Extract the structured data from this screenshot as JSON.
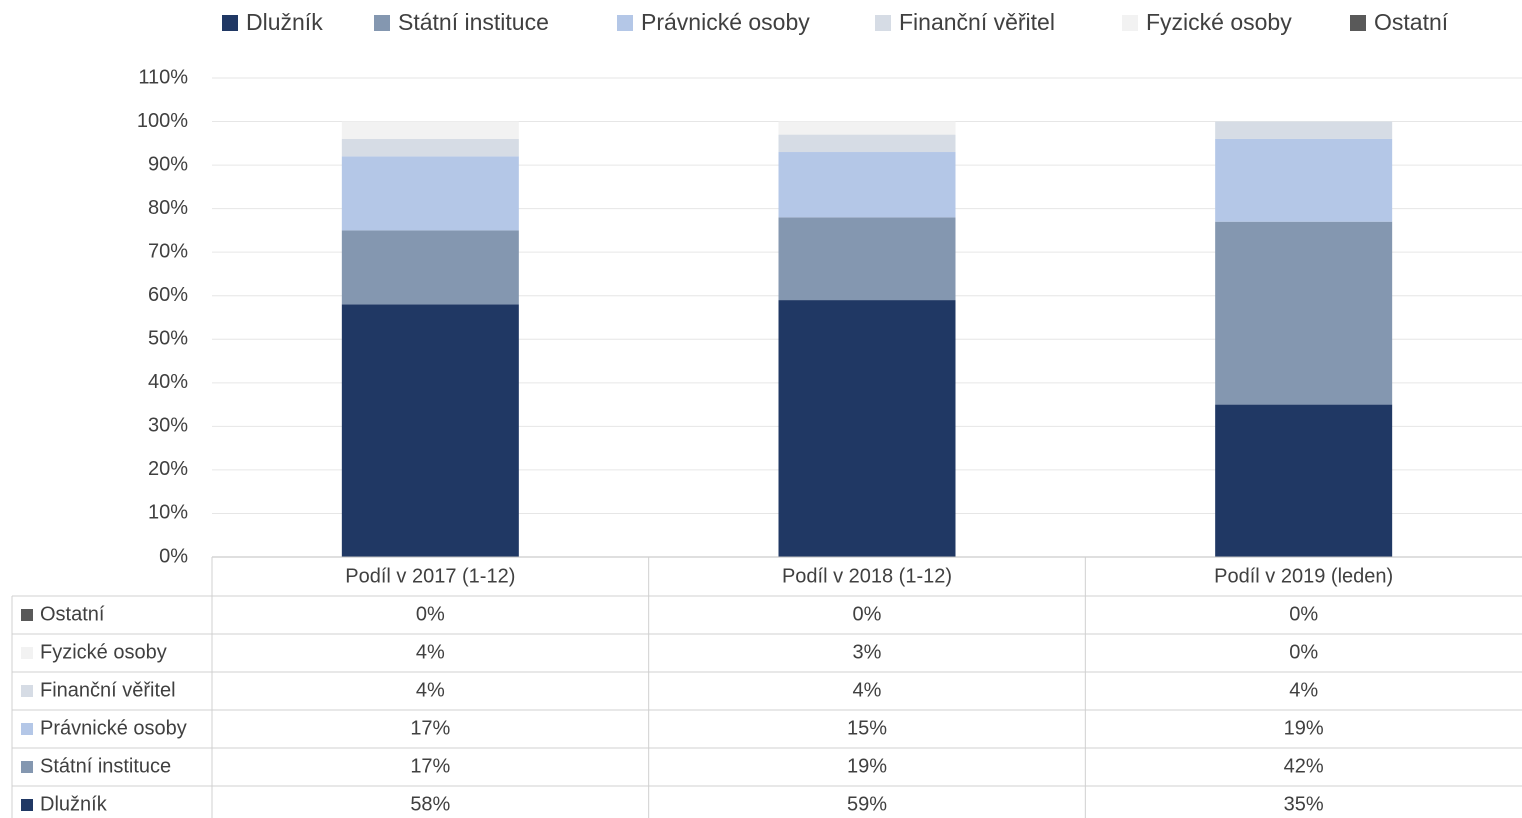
{
  "chart_data": {
    "type": "stacked_bar",
    "categories": [
      "Podíl v 2017 (1-12)",
      "Podíl v 2018 (1-12)",
      "Podíl v 2019 (leden)"
    ],
    "series": [
      {
        "name": "Dlužník",
        "color": "#203864",
        "values": [
          58,
          59,
          35
        ],
        "value_labels": [
          "58%",
          "59%",
          "35%"
        ]
      },
      {
        "name": "Státní instituce",
        "color": "#8497b0",
        "values": [
          17,
          19,
          42
        ],
        "value_labels": [
          "17%",
          "19%",
          "42%"
        ]
      },
      {
        "name": "Právnické osoby",
        "color": "#b4c7e7",
        "values": [
          17,
          15,
          19
        ],
        "value_labels": [
          "17%",
          "15%",
          "19%"
        ]
      },
      {
        "name": "Finanční věřitel",
        "color": "#d6dce5",
        "values": [
          4,
          4,
          4
        ],
        "value_labels": [
          "4%",
          "4%",
          "4%"
        ]
      },
      {
        "name": "Fyzické osoby",
        "color": "#f2f2f2",
        "values": [
          4,
          3,
          0
        ],
        "value_labels": [
          "4%",
          "3%",
          "0%"
        ]
      },
      {
        "name": "Ostatní",
        "color": "#595959",
        "values": [
          0,
          0,
          0
        ],
        "value_labels": [
          "0%",
          "0%",
          "0%"
        ]
      }
    ],
    "ylim": [
      0,
      110
    ],
    "yticks": [
      {
        "value": 0,
        "label": "0%"
      },
      {
        "value": 10,
        "label": "10%"
      },
      {
        "value": 20,
        "label": "20%"
      },
      {
        "value": 30,
        "label": "30%"
      },
      {
        "value": 40,
        "label": "40%"
      },
      {
        "value": 50,
        "label": "50%"
      },
      {
        "value": 60,
        "label": "60%"
      },
      {
        "value": 70,
        "label": "70%"
      },
      {
        "value": 80,
        "label": "80%"
      },
      {
        "value": 90,
        "label": "90%"
      },
      {
        "value": 100,
        "label": "100%"
      },
      {
        "value": 110,
        "label": "110%"
      }
    ],
    "grid": true,
    "legend": "top"
  }
}
